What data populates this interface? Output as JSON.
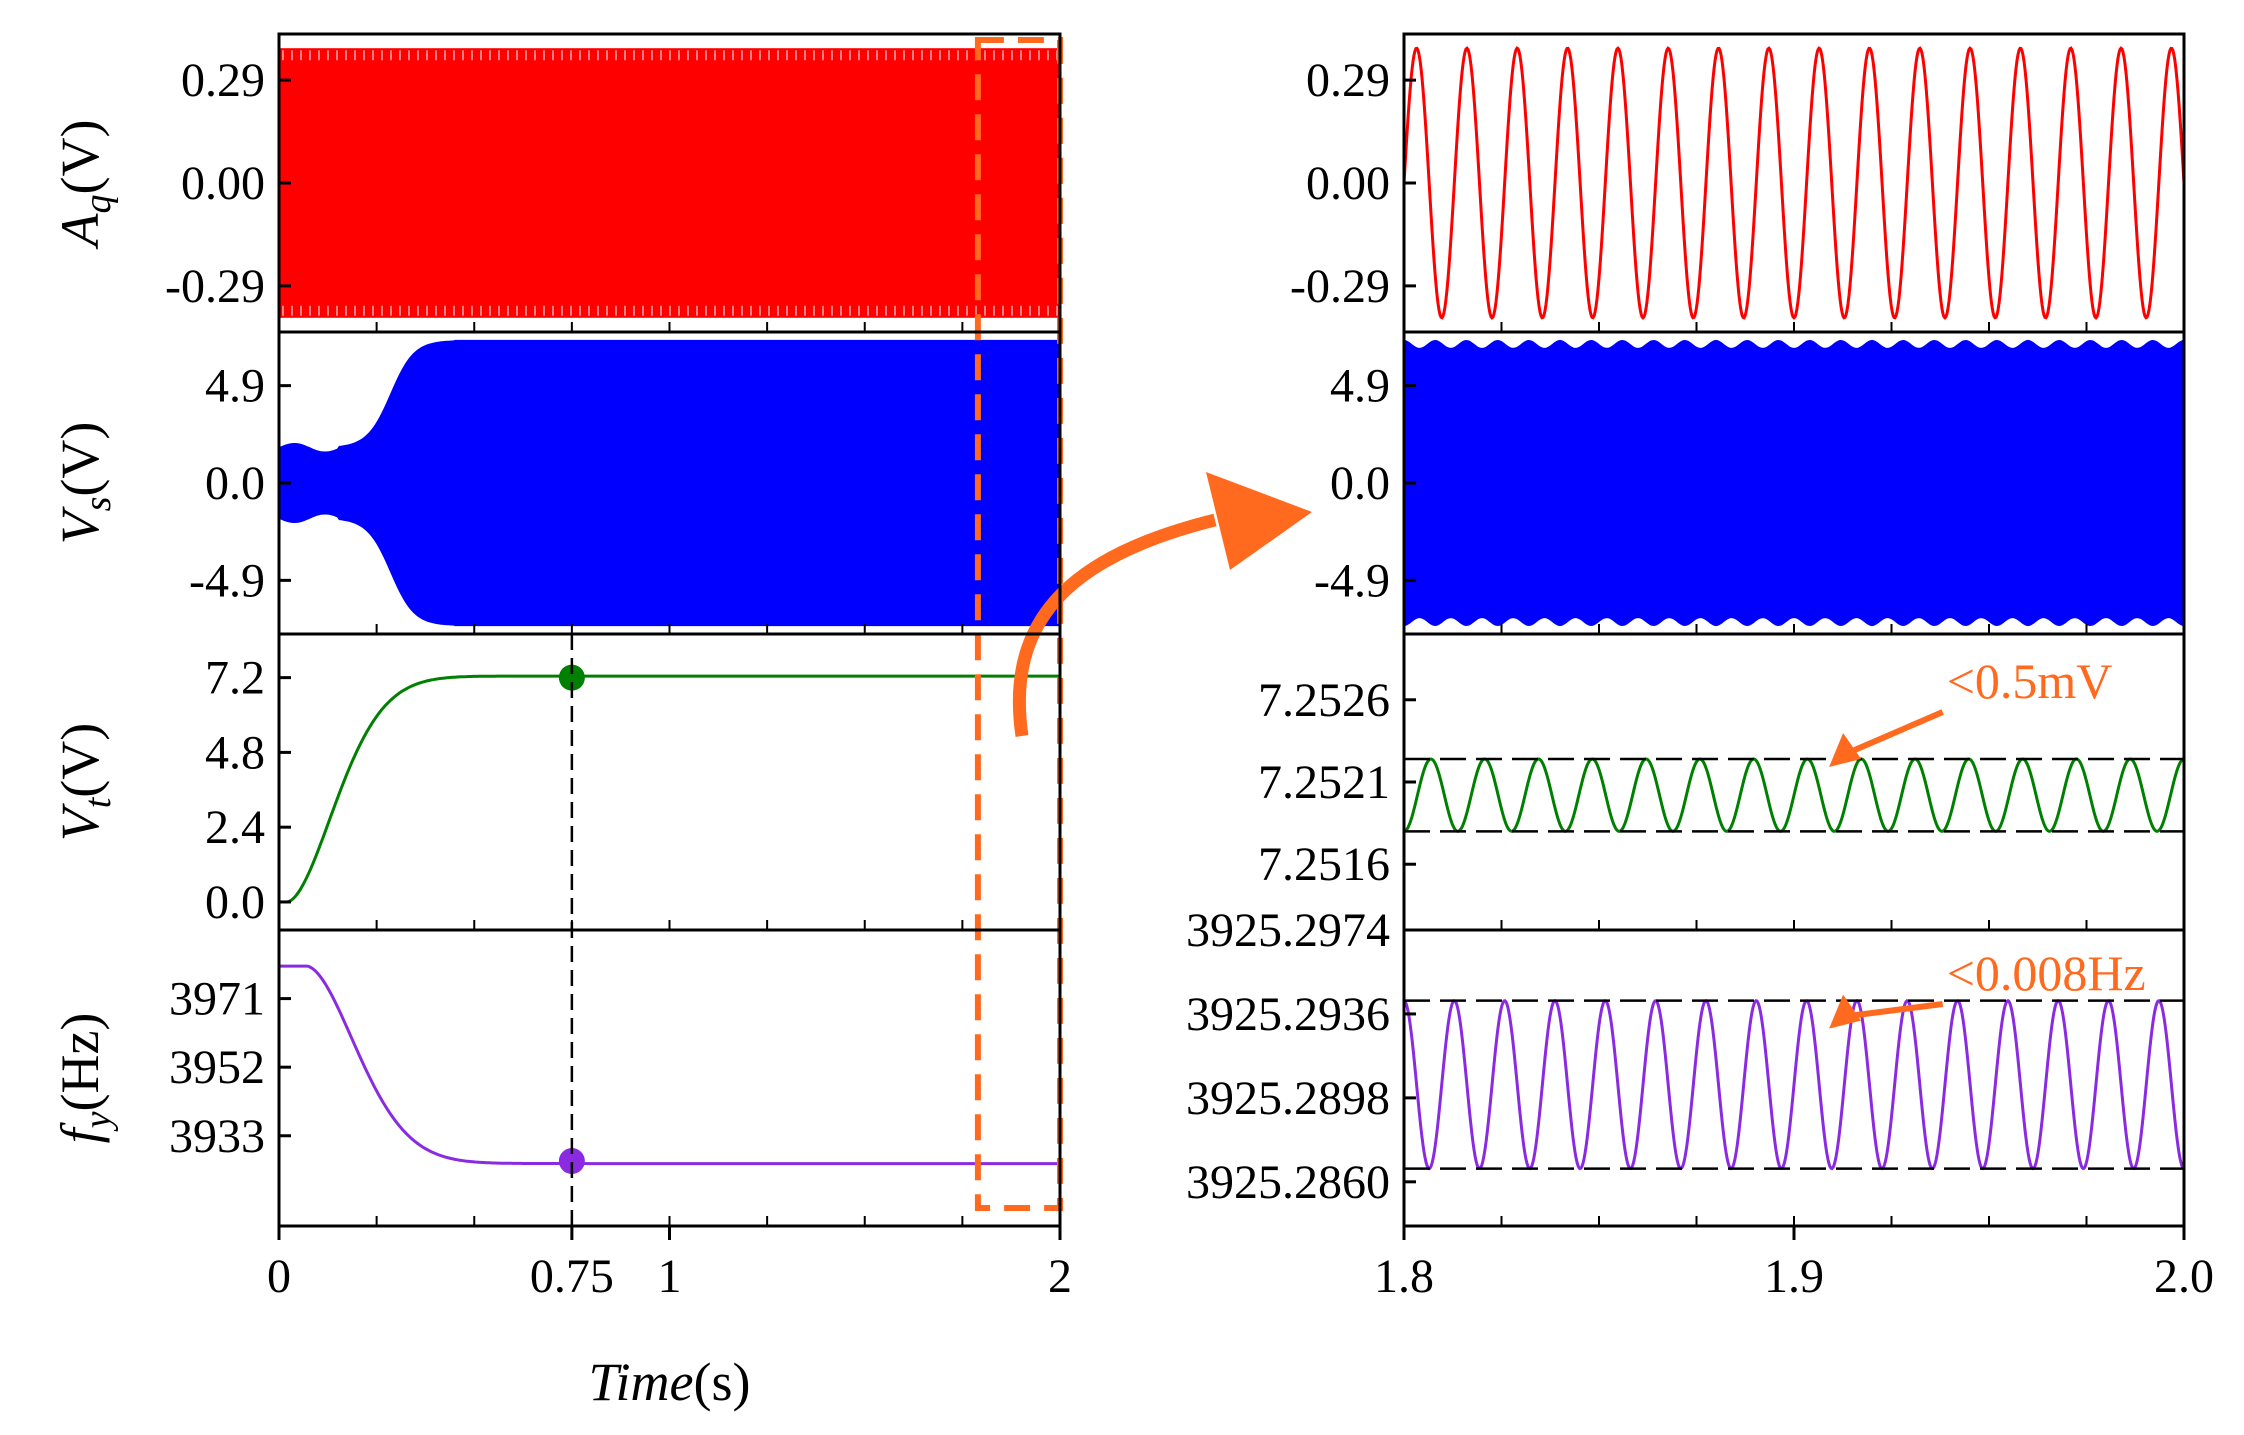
{
  "colors": {
    "amplitude": "#ff0000",
    "vs": "#0000ff",
    "vt": "#008000",
    "fy": "#8a2be2",
    "highlight": "#ff6a1f",
    "axis": "#000000"
  },
  "chart_data": [
    {
      "type": "line",
      "panel": "left",
      "title": "",
      "x_axis": {
        "title_italic": "Time",
        "title_unit": "(s)",
        "range": [
          0,
          2
        ],
        "ticks": [
          0,
          0.75,
          1,
          2
        ],
        "tick_labels": [
          "0",
          "0.75",
          "1",
          "2"
        ],
        "marker_x": 0.75
      },
      "zoom_region": [
        1.8,
        2.0
      ],
      "series": [
        {
          "id": "aq",
          "ylabel": {
            "main": "A",
            "sub": "q",
            "unit": "(V)"
          },
          "ylim": [
            -0.42,
            0.42
          ],
          "ticks": [
            0.29,
            0.0,
            -0.29
          ],
          "tick_labels": [
            "0.29",
            "0.00",
            "-0.29"
          ],
          "shape": "dense-oscillation",
          "amplitude_V": 0.38,
          "color_key": "amplitude"
        },
        {
          "id": "vs",
          "ylabel": {
            "main": "V",
            "sub": "s",
            "unit": "(V)"
          },
          "ylim": [
            -7.6,
            7.6
          ],
          "ticks": [
            4.9,
            0.0,
            -4.9
          ],
          "tick_labels": [
            "4.9",
            "0.0",
            "-4.9"
          ],
          "shape": "growing-oscillation",
          "initial_amplitude_V": 1.8,
          "final_amplitude_V": 7.2,
          "growth_time_s": [
            0.15,
            0.45
          ],
          "color_key": "vs"
        },
        {
          "id": "vt",
          "ylabel": {
            "main": "V",
            "sub": "t",
            "unit": "(V)"
          },
          "ylim": [
            -0.9,
            8.6
          ],
          "ticks": [
            7.2,
            4.8,
            2.4,
            0.0
          ],
          "tick_labels": [
            "7.2",
            "4.8",
            "2.4",
            "0.0"
          ],
          "shape": "rise",
          "start": 0.0,
          "steady": 7.25,
          "time_constant_s": 0.17,
          "marker": {
            "x": 0.75,
            "y": 7.2
          },
          "color_key": "vt"
        },
        {
          "id": "fy",
          "ylabel": {
            "main": "f",
            "sub": "y",
            "unit": "(Hz)"
          },
          "ylim": [
            3908,
            3990
          ],
          "ticks": [
            3971,
            3952,
            3933
          ],
          "tick_labels": [
            "3971",
            "3952",
            "3933"
          ],
          "shape": "decay",
          "start": 3980,
          "steady": 3925.3,
          "time_constant_s": 0.18,
          "marker": {
            "x": 0.75,
            "y": 3926
          },
          "color_key": "fy"
        }
      ]
    },
    {
      "type": "line",
      "panel": "right",
      "title": "",
      "x_axis": {
        "range": [
          1.8,
          2.0
        ],
        "ticks": [
          1.8,
          1.9,
          2.0
        ],
        "tick_labels": [
          "1.8",
          "1.9",
          "2.0"
        ]
      },
      "series": [
        {
          "id": "aq_zoom",
          "ylim": [
            -0.42,
            0.42
          ],
          "ticks": [
            0.29,
            0.0,
            -0.29
          ],
          "tick_labels": [
            "0.29",
            "0.00",
            "-0.29"
          ],
          "shape": "sine",
          "amplitude_V": 0.38,
          "cycles": 15.5,
          "color_key": "amplitude"
        },
        {
          "id": "vs_zoom",
          "ylim": [
            -7.6,
            7.6
          ],
          "ticks": [
            4.9,
            0.0,
            -4.9
          ],
          "tick_labels": [
            "4.9",
            "0.0",
            "-4.9"
          ],
          "shape": "dense-oscillation",
          "amplitude_V": 7.2,
          "envelope_ripple_V": 0.4,
          "ripple_cycles": 25,
          "color_key": "vs"
        },
        {
          "id": "vt_zoom",
          "ylim": [
            7.2512,
            7.253
          ],
          "ticks": [
            7.2526,
            7.2521,
            7.2516
          ],
          "tick_labels": [
            "7.2526",
            "7.2521",
            "7.2516"
          ],
          "shape": "sine",
          "center": 7.25202,
          "amplitude": 0.00022,
          "cycles": 14.5,
          "bounds": [
            7.2518,
            7.25224
          ],
          "annotation": "<0.5mV",
          "color_key": "vt"
        },
        {
          "id": "fy_zoom",
          "ylim": [
            3925.284,
            3925.2974
          ],
          "ticks": [
            3925.2974,
            3925.2936,
            3925.2898,
            3925.286
          ],
          "tick_labels": [
            "3925.2974",
            "3925.2936",
            "3925.2898",
            "3925.2860"
          ],
          "shape": "sine",
          "center": 3925.2904,
          "amplitude": 0.0038,
          "cycles": 15.5,
          "bounds": [
            3925.2866,
            3925.2942
          ],
          "annotation": "<0.008Hz",
          "color_key": "fy"
        }
      ]
    }
  ]
}
